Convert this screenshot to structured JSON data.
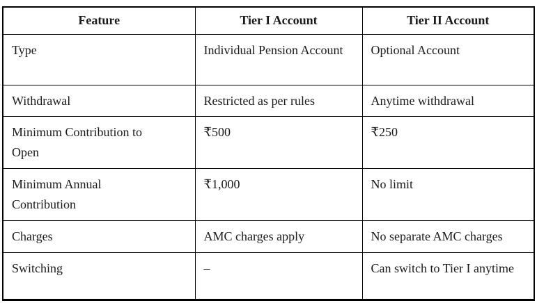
{
  "table": {
    "headers": {
      "feature": "Feature",
      "tier1": "Tier I Account",
      "tier2": "Tier II Account"
    },
    "rows": [
      {
        "feature": "Type",
        "tier1": "Individual Pension Account",
        "tier2": "Optional Account"
      },
      {
        "feature": "Withdrawal",
        "tier1": "Restricted as per rules",
        "tier2": "Anytime withdrawal"
      },
      {
        "feature": "Minimum Contribution to Open",
        "tier1": "₹500",
        "tier2": "₹250"
      },
      {
        "feature": "Minimum Annual Contribution",
        "tier1": "₹1,000",
        "tier2": "No limit"
      },
      {
        "feature": "Charges",
        "tier1": "AMC charges apply",
        "tier2": "No separate AMC charges"
      },
      {
        "feature": "Switching",
        "tier1": "–",
        "tier2": "Can switch to Tier I anytime"
      }
    ],
    "colors": {
      "border": "#000000",
      "text": "#1a1a1a",
      "background": "#ffffff"
    }
  }
}
